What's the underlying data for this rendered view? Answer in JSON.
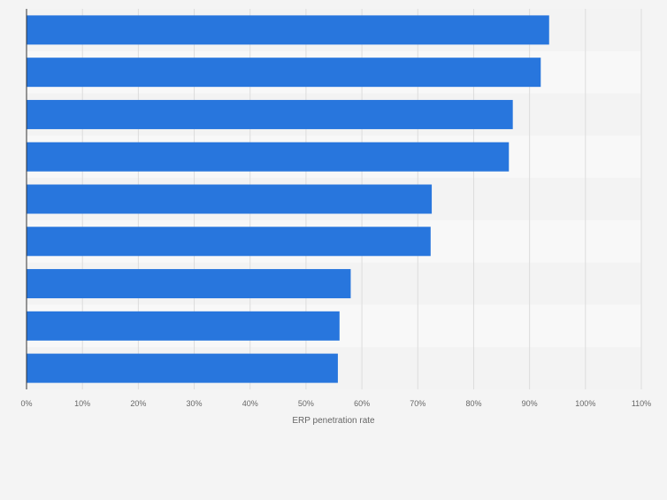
{
  "chart_data": {
    "type": "bar",
    "orientation": "horizontal",
    "title": "",
    "xlabel": "ERP penetration rate",
    "ylabel": "",
    "xlim": [
      0,
      110
    ],
    "x_ticks": [
      "0%",
      "10%",
      "20%",
      "30%",
      "40%",
      "50%",
      "60%",
      "70%",
      "80%",
      "90%",
      "100%",
      "110%"
    ],
    "categories": [
      "",
      "",
      "",
      "",
      "",
      "",
      "",
      "",
      ""
    ],
    "values": [
      93.5,
      92,
      87,
      86.3,
      72.5,
      72.3,
      58,
      56,
      55.7
    ],
    "unit": "%",
    "bar_color": "#2876dd",
    "band_colors": [
      "#f3f3f3",
      "#f8f8f8"
    ],
    "grid": true
  }
}
